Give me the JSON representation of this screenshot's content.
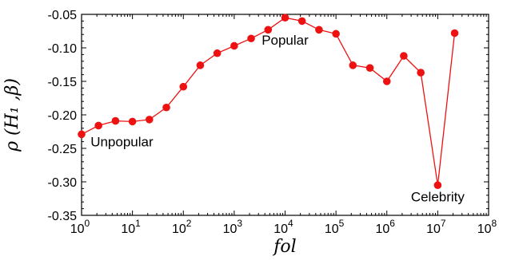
{
  "chart_data": {
    "type": "line",
    "title": "",
    "xlabel": "fol",
    "ylabel": "ρ (H₁ ,β)",
    "xscale": "log",
    "xlim": [
      1,
      100000000
    ],
    "ylim": [
      -0.35,
      -0.05
    ],
    "x_ticks": [
      1,
      10,
      100,
      1000,
      10000,
      100000,
      1000000,
      10000000,
      100000000
    ],
    "x_tick_exponents": [
      "0",
      "1",
      "2",
      "3",
      "4",
      "5",
      "6",
      "7",
      "8"
    ],
    "y_ticks": [
      -0.35,
      -0.3,
      -0.25,
      -0.2,
      -0.15,
      -0.1,
      -0.05
    ],
    "y_tick_labels": [
      "-0.35",
      "-0.30",
      "-0.25",
      "-0.20",
      "-0.15",
      "-0.10",
      "-0.05"
    ],
    "grid": false,
    "color": "#ee1111",
    "series": [
      {
        "x": [
          1,
          2.15,
          4.64,
          10,
          21.5,
          46.4,
          100,
          215,
          464,
          1000,
          2150,
          4640,
          10000,
          21500,
          46400,
          100000,
          215000,
          464000,
          1000000,
          2150000,
          4640000,
          10000000,
          21500000
        ],
        "y": [
          -0.229,
          -0.216,
          -0.209,
          -0.21,
          -0.207,
          -0.189,
          -0.158,
          -0.126,
          -0.108,
          -0.097,
          -0.086,
          -0.073,
          -0.055,
          -0.06,
          -0.073,
          -0.079,
          -0.126,
          -0.13,
          -0.15,
          -0.112,
          -0.137,
          -0.305,
          -0.078
        ]
      }
    ],
    "annotations": [
      {
        "text": "Unpopular",
        "x": 1.5,
        "y": -0.24
      },
      {
        "text": "Popular",
        "x": 10000,
        "y": -0.088
      },
      {
        "text": "Celebrity",
        "x": 10000000,
        "y": -0.322
      }
    ]
  }
}
